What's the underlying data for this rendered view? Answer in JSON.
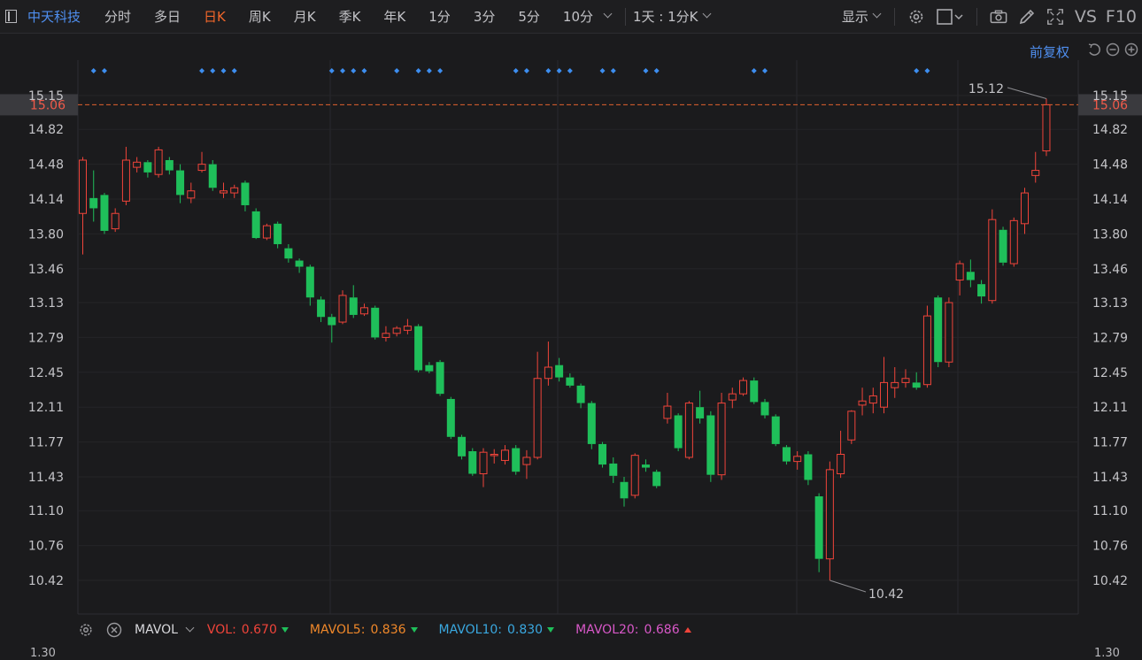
{
  "toolbar": {
    "stock_name": "中天科技",
    "periods": [
      {
        "label": "分时",
        "active": false
      },
      {
        "label": "多日",
        "active": false
      },
      {
        "label": "日K",
        "active": true
      },
      {
        "label": "周K",
        "active": false
      },
      {
        "label": "月K",
        "active": false
      },
      {
        "label": "季K",
        "active": false
      },
      {
        "label": "年K",
        "active": false
      },
      {
        "label": "1分",
        "active": false
      },
      {
        "label": "3分",
        "active": false
      },
      {
        "label": "5分",
        "active": false
      },
      {
        "label": "10分",
        "active": false
      }
    ],
    "range_select": "1天 : 1分K",
    "display_label": "显示",
    "vs_label": "VS",
    "f10_label": "F10"
  },
  "chart_header": {
    "adjust_label": "前复权"
  },
  "chart_data": {
    "type": "candlestick",
    "price_labels": [
      "15.15",
      "14.82",
      "14.48",
      "14.14",
      "13.80",
      "13.46",
      "13.13",
      "12.79",
      "12.45",
      "12.11",
      "11.77",
      "11.43",
      "11.10",
      "10.76",
      "10.42"
    ],
    "current_price": "15.06",
    "high_annotation": "15.12",
    "low_annotation": "10.42",
    "colors": {
      "up": "#f0443a",
      "down": "#1fbf5a",
      "current_line": "#e0602f",
      "marker": "#3d8ef0"
    },
    "candles": [
      [
        14.0,
        14.52,
        14.55,
        13.6
      ],
      [
        14.15,
        14.05,
        14.42,
        13.92
      ],
      [
        14.18,
        13.83,
        14.2,
        13.8
      ],
      [
        13.85,
        14.0,
        14.05,
        13.82
      ],
      [
        14.12,
        14.52,
        14.65,
        14.08
      ],
      [
        14.45,
        14.5,
        14.55,
        14.4
      ],
      [
        14.5,
        14.4,
        14.52,
        14.35
      ],
      [
        14.38,
        14.62,
        14.65,
        14.35
      ],
      [
        14.52,
        14.42,
        14.55,
        14.38
      ],
      [
        14.42,
        14.18,
        14.48,
        14.1
      ],
      [
        14.15,
        14.22,
        14.3,
        14.1
      ],
      [
        14.42,
        14.48,
        14.6,
        14.4
      ],
      [
        14.48,
        14.25,
        14.52,
        14.22
      ],
      [
        14.2,
        14.22,
        14.3,
        14.15
      ],
      [
        14.2,
        14.25,
        14.28,
        14.15
      ],
      [
        14.3,
        14.08,
        14.32,
        14.02
      ],
      [
        14.02,
        13.76,
        14.05,
        13.75
      ],
      [
        13.76,
        13.88,
        13.9,
        13.74
      ],
      [
        13.9,
        13.7,
        13.92,
        13.66
      ],
      [
        13.66,
        13.56,
        13.7,
        13.52
      ],
      [
        13.54,
        13.48,
        13.56,
        13.42
      ],
      [
        13.48,
        13.18,
        13.5,
        13.1
      ],
      [
        13.16,
        12.99,
        13.19,
        12.94
      ],
      [
        12.99,
        12.91,
        13.02,
        12.74
      ],
      [
        12.94,
        13.2,
        13.25,
        12.92
      ],
      [
        13.18,
        13.01,
        13.3,
        12.98
      ],
      [
        13.02,
        13.08,
        13.12,
        13.0
      ],
      [
        13.08,
        12.79,
        13.1,
        12.77
      ],
      [
        12.79,
        12.83,
        12.9,
        12.75
      ],
      [
        12.83,
        12.88,
        12.9,
        12.8
      ],
      [
        12.86,
        12.9,
        12.97,
        12.82
      ],
      [
        12.9,
        12.47,
        12.92,
        12.45
      ],
      [
        12.52,
        12.46,
        12.55,
        12.44
      ],
      [
        12.55,
        12.24,
        12.57,
        12.22
      ],
      [
        12.19,
        11.82,
        12.21,
        11.8
      ],
      [
        11.82,
        11.63,
        11.84,
        11.6
      ],
      [
        11.68,
        11.46,
        11.71,
        11.44
      ],
      [
        11.46,
        11.67,
        11.71,
        11.33
      ],
      [
        11.64,
        11.65,
        11.7,
        11.56
      ],
      [
        11.59,
        11.69,
        11.74,
        11.55
      ],
      [
        11.71,
        11.48,
        11.74,
        11.45
      ],
      [
        11.55,
        11.62,
        11.69,
        11.41
      ],
      [
        11.62,
        12.39,
        12.65,
        11.6
      ],
      [
        12.39,
        12.5,
        12.75,
        12.32
      ],
      [
        12.52,
        12.4,
        12.59,
        12.36
      ],
      [
        12.4,
        12.32,
        12.44,
        12.3
      ],
      [
        12.32,
        12.15,
        12.34,
        12.1
      ],
      [
        12.15,
        11.75,
        12.17,
        11.7
      ],
      [
        11.75,
        11.55,
        11.77,
        11.52
      ],
      [
        11.56,
        11.44,
        11.62,
        11.37
      ],
      [
        11.38,
        11.22,
        11.43,
        11.14
      ],
      [
        11.25,
        11.64,
        11.66,
        11.22
      ],
      [
        11.55,
        11.52,
        11.6,
        11.48
      ],
      [
        11.48,
        11.34,
        11.5,
        11.32
      ],
      [
        12.0,
        12.12,
        12.25,
        11.95
      ],
      [
        12.03,
        11.71,
        12.05,
        11.68
      ],
      [
        11.62,
        12.15,
        12.17,
        11.6
      ],
      [
        12.11,
        12.0,
        12.27,
        11.95
      ],
      [
        12.03,
        11.45,
        12.07,
        11.38
      ],
      [
        11.45,
        12.15,
        12.25,
        11.4
      ],
      [
        12.18,
        12.24,
        12.3,
        12.1
      ],
      [
        12.24,
        12.37,
        12.4,
        12.22
      ],
      [
        12.37,
        12.16,
        12.4,
        12.14
      ],
      [
        12.16,
        12.03,
        12.19,
        12.0
      ],
      [
        12.02,
        11.75,
        12.04,
        11.73
      ],
      [
        11.72,
        11.58,
        11.74,
        11.55
      ],
      [
        11.58,
        11.63,
        11.68,
        11.5
      ],
      [
        11.65,
        11.4,
        11.68,
        11.35
      ],
      [
        11.24,
        10.63,
        11.27,
        10.5
      ],
      [
        10.63,
        11.5,
        11.58,
        10.42
      ],
      [
        11.46,
        11.65,
        11.88,
        11.42
      ],
      [
        11.79,
        12.07,
        12.08,
        11.75
      ],
      [
        12.13,
        12.17,
        12.3,
        12.03
      ],
      [
        12.15,
        12.22,
        12.3,
        12.05
      ],
      [
        12.11,
        12.35,
        12.6,
        12.05
      ],
      [
        12.3,
        12.35,
        12.5,
        12.2
      ],
      [
        12.35,
        12.39,
        12.48,
        12.3
      ],
      [
        12.35,
        12.3,
        12.45,
        12.28
      ],
      [
        12.33,
        13.0,
        13.1,
        12.3
      ],
      [
        13.18,
        12.55,
        13.2,
        12.5
      ],
      [
        12.55,
        13.13,
        13.18,
        12.5
      ],
      [
        13.35,
        13.51,
        13.54,
        13.2
      ],
      [
        13.43,
        13.35,
        13.55,
        13.28
      ],
      [
        13.31,
        13.19,
        13.35,
        13.12
      ],
      [
        13.15,
        13.94,
        14.04,
        13.12
      ],
      [
        13.84,
        13.52,
        13.87,
        13.49
      ],
      [
        13.51,
        13.93,
        13.96,
        13.48
      ],
      [
        13.9,
        14.2,
        14.25,
        13.8
      ],
      [
        14.37,
        14.42,
        14.6,
        14.3
      ],
      [
        14.61,
        15.06,
        15.12,
        14.56
      ]
    ],
    "markers": [
      1,
      2,
      11,
      12,
      13,
      14,
      23,
      24,
      25,
      26,
      29,
      31,
      32,
      33,
      40,
      41,
      43,
      44,
      45,
      48,
      49,
      52,
      53,
      62,
      63,
      77,
      78
    ]
  },
  "indicator": {
    "name": "MAVOL",
    "items": [
      {
        "label": "VOL:",
        "value": "0.670",
        "color": "#f0443a",
        "trend": "down"
      },
      {
        "label": "MAVOL5:",
        "value": "0.836",
        "color": "#f0882a",
        "trend": "down"
      },
      {
        "label": "MAVOL10:",
        "value": "0.830",
        "color": "#3aa8e0",
        "trend": "down"
      },
      {
        "label": "MAVOL20:",
        "value": "0.686",
        "color": "#d858c8",
        "trend": "up"
      }
    ]
  },
  "vol_axis_label": "1.30"
}
